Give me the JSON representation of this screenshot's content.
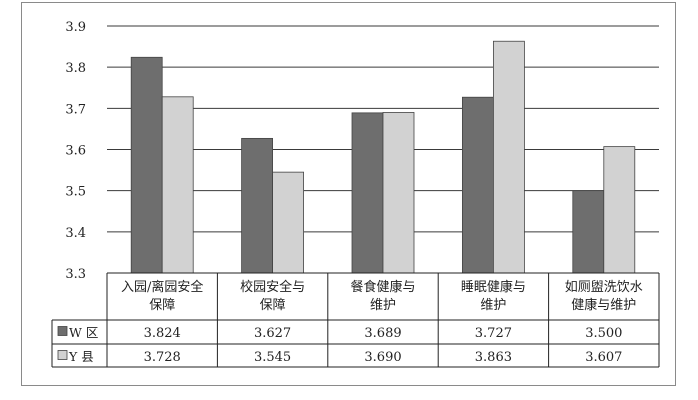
{
  "chart_data": {
    "type": "bar",
    "title": "",
    "xlabel": "",
    "ylabel": "",
    "ylim": [
      3.3,
      3.9
    ],
    "yticks": [
      "3.3",
      "3.4",
      "3.5",
      "3.6",
      "3.7",
      "3.8",
      "3.9"
    ],
    "grid": true,
    "legend": "data-table-left",
    "categories": [
      [
        "入园/离园安全",
        "保障"
      ],
      [
        "校园安全与",
        "保障"
      ],
      [
        "餐食健康与",
        "维护"
      ],
      [
        "睡眠健康与",
        "维护"
      ],
      [
        "如厕盥洗饮水",
        "健康与维护"
      ]
    ],
    "series": [
      {
        "name": "W 区",
        "color": "#6e6e6e",
        "values": [
          3.824,
          3.627,
          3.689,
          3.727,
          3.5
        ],
        "labels": [
          "3.824",
          "3.627",
          "3.689",
          "3.727",
          "3.500"
        ]
      },
      {
        "name": "Y 县",
        "color": "#d2d2d2",
        "values": [
          3.728,
          3.545,
          3.69,
          3.863,
          3.607
        ],
        "labels": [
          "3.728",
          "3.545",
          "3.690",
          "3.863",
          "3.607"
        ]
      }
    ]
  }
}
